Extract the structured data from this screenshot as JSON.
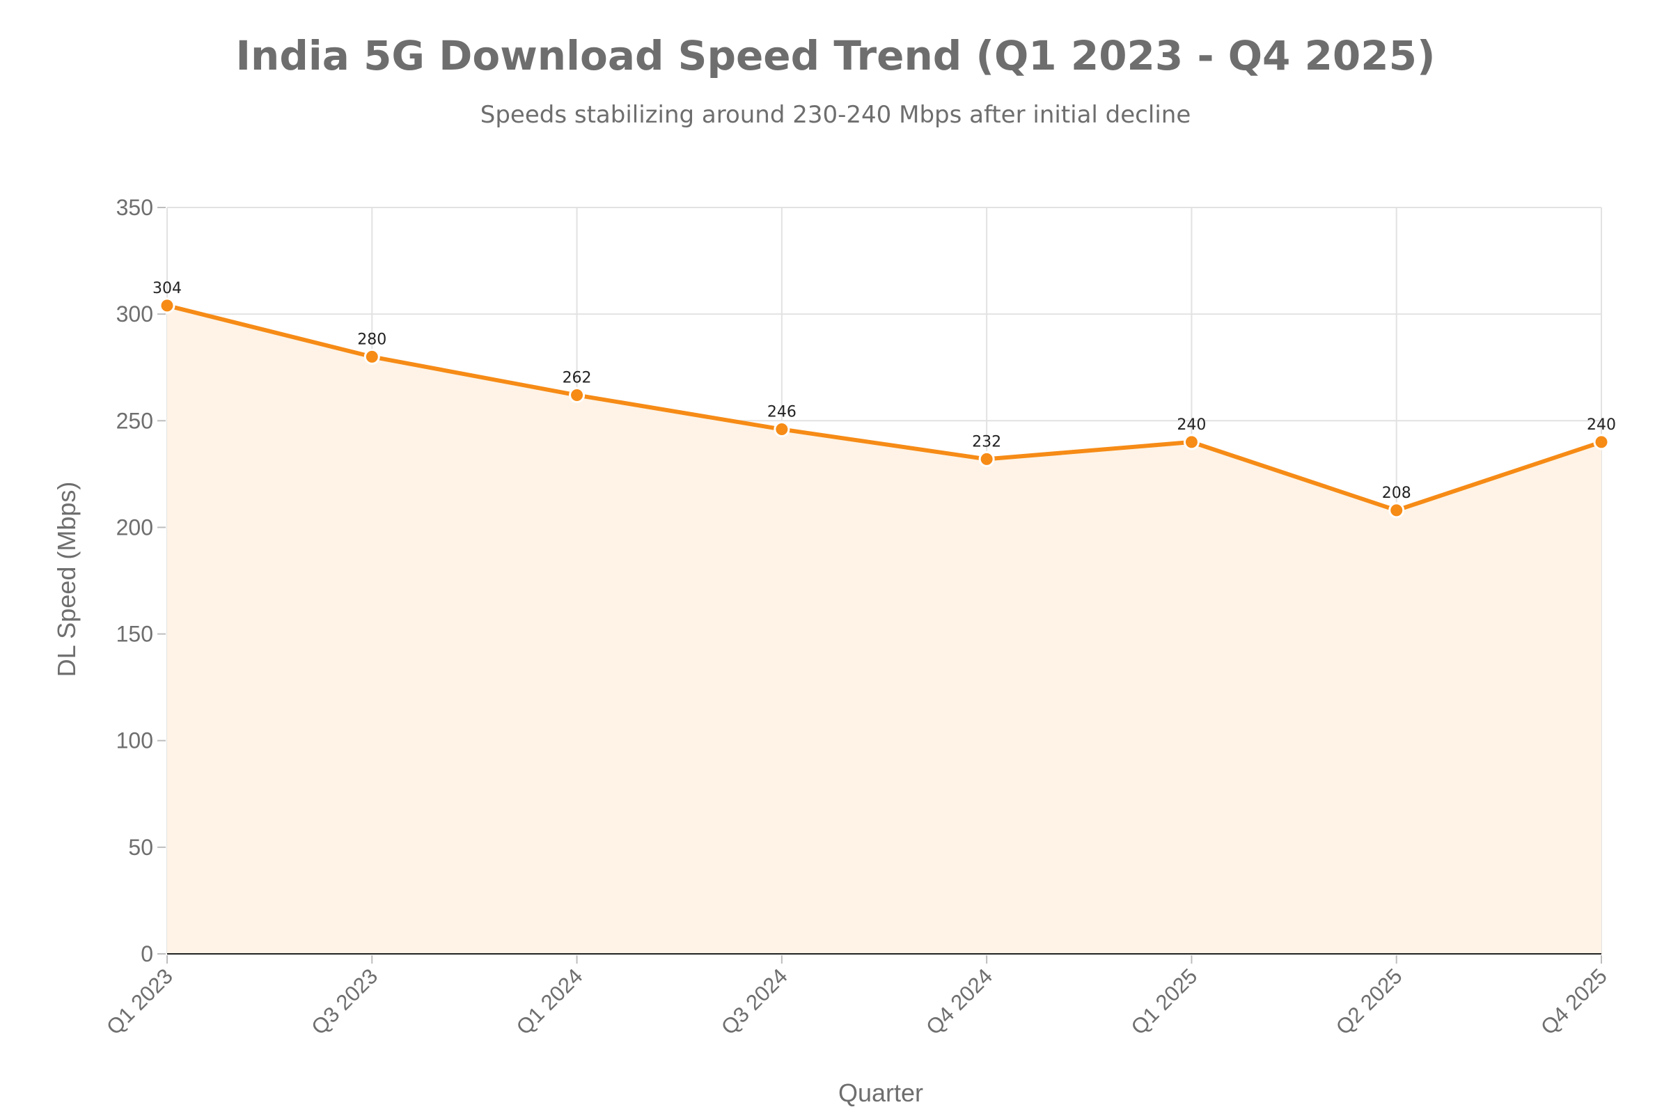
{
  "chart_data": {
    "type": "area",
    "title": "India 5G Download Speed Trend (Q1 2023 - Q4 2025)",
    "subtitle": "Speeds stabilizing around 230-240 Mbps after initial decline",
    "xlabel": "Quarter",
    "ylabel": "DL Speed (Mbps)",
    "categories": [
      "Q1 2023",
      "Q3 2023",
      "Q1 2024",
      "Q3 2024",
      "Q4 2024",
      "Q1 2025",
      "Q2 2025",
      "Q4 2025"
    ],
    "series": [
      {
        "values": [
          304,
          280,
          262,
          246,
          232,
          240,
          208,
          240
        ]
      }
    ],
    "ylim": [
      0,
      350
    ],
    "yticks": [
      0,
      50,
      100,
      150,
      200,
      250,
      300,
      350
    ],
    "grid": true,
    "show_data_labels": true,
    "colors": {
      "line": "#f68b16",
      "fill": "#fef3e6",
      "marker_stroke": "#ffffff",
      "grid": "#e2e2e2",
      "axis": "#222222",
      "text": "#6e6e6e"
    }
  }
}
